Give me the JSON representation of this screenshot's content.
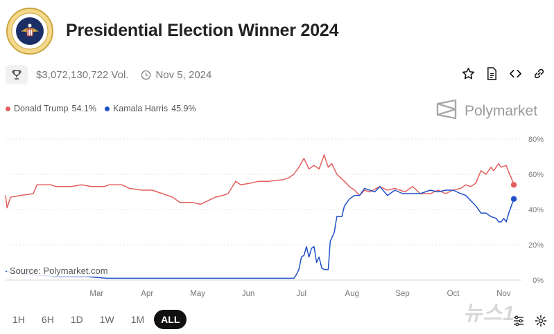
{
  "header": {
    "title": "Presidential Election Winner 2024",
    "volume": "$3,072,130,722 Vol.",
    "date": "Nov 5, 2024"
  },
  "legend": [
    {
      "name": "Donald Trump",
      "value": "54.1%",
      "color": "#e35e5e"
    },
    {
      "name": "Kamala Harris",
      "value": "45.9%",
      "color": "#1f4fc8"
    }
  ],
  "brand": "Polymarket",
  "source": "Source: Polymarket.com",
  "watermark": "뉴스1",
  "ranges": [
    "1H",
    "6H",
    "1D",
    "1W",
    "1M",
    "ALL"
  ],
  "active_range": "ALL",
  "chart_data": {
    "type": "line",
    "title": "Presidential Election Winner 2024",
    "x_range": [
      0,
      10.2
    ],
    "x_tick_labels": [
      "Mar",
      "Apr",
      "May",
      "Jun",
      "Jul",
      "Aug",
      "Sep",
      "Oct",
      "Nov"
    ],
    "x_tick_values": [
      1.8,
      2.8,
      3.8,
      4.8,
      5.85,
      6.85,
      7.85,
      8.85,
      9.85
    ],
    "ylim": [
      0,
      80
    ],
    "y_tick_values": [
      0,
      20,
      40,
      60,
      80
    ],
    "y_tick_labels": [
      "0%",
      "20%",
      "40%",
      "60%",
      "80%"
    ],
    "series": [
      {
        "name": "Donald Trump",
        "color": "#e35e5e",
        "points": [
          [
            0,
            48
          ],
          [
            0.03,
            41
          ],
          [
            0.1,
            47
          ],
          [
            0.3,
            48
          ],
          [
            0.55,
            49
          ],
          [
            0.62,
            54
          ],
          [
            0.9,
            54
          ],
          [
            1.0,
            53
          ],
          [
            1.3,
            53
          ],
          [
            1.5,
            54
          ],
          [
            1.7,
            53
          ],
          [
            1.95,
            53
          ],
          [
            2.05,
            54
          ],
          [
            2.3,
            54
          ],
          [
            2.45,
            52
          ],
          [
            2.7,
            51
          ],
          [
            2.9,
            51
          ],
          [
            3.1,
            49
          ],
          [
            3.3,
            47
          ],
          [
            3.45,
            44
          ],
          [
            3.7,
            44
          ],
          [
            3.85,
            43
          ],
          [
            4.0,
            45
          ],
          [
            4.15,
            47
          ],
          [
            4.3,
            48
          ],
          [
            4.4,
            49
          ],
          [
            4.55,
            56
          ],
          [
            4.65,
            54
          ],
          [
            4.85,
            55
          ],
          [
            5.0,
            56
          ],
          [
            5.2,
            56
          ],
          [
            5.5,
            57
          ],
          [
            5.6,
            58
          ],
          [
            5.7,
            60
          ],
          [
            5.8,
            64
          ],
          [
            5.9,
            69
          ],
          [
            6.0,
            63
          ],
          [
            6.1,
            65
          ],
          [
            6.2,
            63
          ],
          [
            6.25,
            67
          ],
          [
            6.3,
            71
          ],
          [
            6.38,
            64
          ],
          [
            6.45,
            66
          ],
          [
            6.55,
            60
          ],
          [
            6.7,
            56
          ],
          [
            6.8,
            53
          ],
          [
            6.9,
            51
          ],
          [
            7.0,
            48
          ],
          [
            7.1,
            51
          ],
          [
            7.2,
            50
          ],
          [
            7.4,
            53
          ],
          [
            7.55,
            51
          ],
          [
            7.7,
            52
          ],
          [
            7.9,
            50
          ],
          [
            8.05,
            53
          ],
          [
            8.2,
            49
          ],
          [
            8.4,
            49
          ],
          [
            8.55,
            51
          ],
          [
            8.7,
            49
          ],
          [
            8.85,
            51
          ],
          [
            9.0,
            52
          ],
          [
            9.1,
            54
          ],
          [
            9.2,
            53
          ],
          [
            9.3,
            55
          ],
          [
            9.4,
            62
          ],
          [
            9.5,
            60
          ],
          [
            9.6,
            64
          ],
          [
            9.65,
            62
          ],
          [
            9.75,
            66
          ],
          [
            9.8,
            64
          ],
          [
            9.9,
            65
          ],
          [
            9.95,
            61
          ],
          [
            10.0,
            58
          ],
          [
            10.05,
            54
          ]
        ]
      },
      {
        "name": "Kamala Harris",
        "color": "#1f4fc8",
        "points": [
          [
            0,
            5
          ],
          [
            0.5,
            3
          ],
          [
            1.0,
            2
          ],
          [
            1.6,
            2
          ],
          [
            2.0,
            1
          ],
          [
            2.5,
            1
          ],
          [
            3.0,
            1
          ],
          [
            3.5,
            1
          ],
          [
            4.0,
            1
          ],
          [
            4.5,
            1
          ],
          [
            5.0,
            1
          ],
          [
            5.4,
            1
          ],
          [
            5.7,
            1
          ],
          [
            5.75,
            3
          ],
          [
            5.8,
            6
          ],
          [
            5.85,
            13
          ],
          [
            5.9,
            14
          ],
          [
            5.95,
            19
          ],
          [
            6.0,
            13
          ],
          [
            6.05,
            18
          ],
          [
            6.1,
            19
          ],
          [
            6.15,
            10
          ],
          [
            6.2,
            13
          ],
          [
            6.25,
            7
          ],
          [
            6.3,
            6
          ],
          [
            6.38,
            6
          ],
          [
            6.42,
            22
          ],
          [
            6.5,
            27
          ],
          [
            6.55,
            36
          ],
          [
            6.65,
            36
          ],
          [
            6.7,
            42
          ],
          [
            6.8,
            46
          ],
          [
            6.9,
            48
          ],
          [
            7.0,
            48
          ],
          [
            7.1,
            52
          ],
          [
            7.2,
            51
          ],
          [
            7.3,
            50
          ],
          [
            7.4,
            53
          ],
          [
            7.55,
            48
          ],
          [
            7.7,
            51
          ],
          [
            7.85,
            49
          ],
          [
            8.0,
            49
          ],
          [
            8.2,
            49
          ],
          [
            8.4,
            51
          ],
          [
            8.55,
            50
          ],
          [
            8.7,
            51
          ],
          [
            8.85,
            51
          ],
          [
            9.0,
            49
          ],
          [
            9.1,
            48
          ],
          [
            9.2,
            45
          ],
          [
            9.3,
            42
          ],
          [
            9.4,
            38
          ],
          [
            9.5,
            38
          ],
          [
            9.6,
            36
          ],
          [
            9.7,
            35
          ],
          [
            9.75,
            33
          ],
          [
            9.8,
            33
          ],
          [
            9.85,
            35
          ],
          [
            9.9,
            33
          ],
          [
            9.95,
            38
          ],
          [
            10.0,
            42
          ],
          [
            10.05,
            46
          ]
        ]
      }
    ]
  }
}
